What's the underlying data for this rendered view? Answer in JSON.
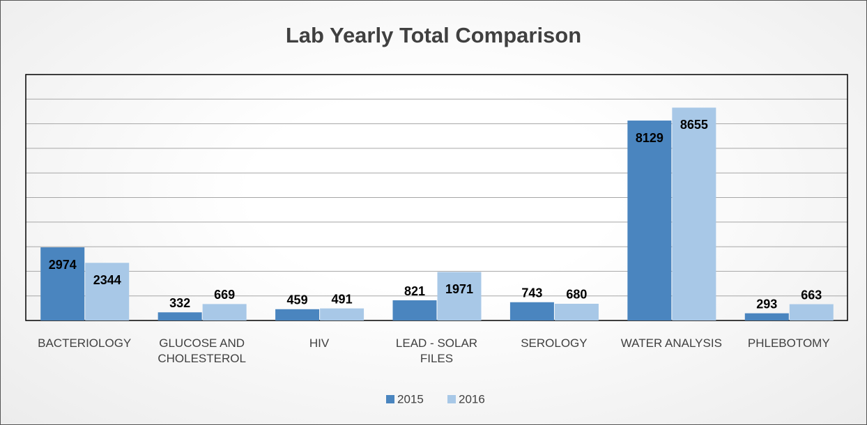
{
  "chart_data": {
    "type": "bar",
    "title": "Lab Yearly Total Comparison",
    "categories": [
      "BACTERIOLOGY",
      "GLUCOSE AND CHOLESTEROL",
      "HIV",
      "LEAD - SOLAR FILES",
      "SEROLOGY",
      "WATER ANALYSIS",
      "PHLEBOTOMY"
    ],
    "series": [
      {
        "name": "2015",
        "color": "#4a85bf",
        "values": [
          2974,
          332,
          459,
          821,
          743,
          8129,
          293
        ]
      },
      {
        "name": "2016",
        "color": "#a8c8e7",
        "values": [
          2344,
          669,
          491,
          1971,
          680,
          8655,
          663
        ]
      }
    ],
    "ylim": [
      0,
      10000
    ],
    "yticks": [
      0,
      1000,
      2000,
      3000,
      4000,
      5000,
      6000,
      7000,
      8000,
      9000,
      10000
    ],
    "grid": true,
    "legend": "bottom"
  }
}
